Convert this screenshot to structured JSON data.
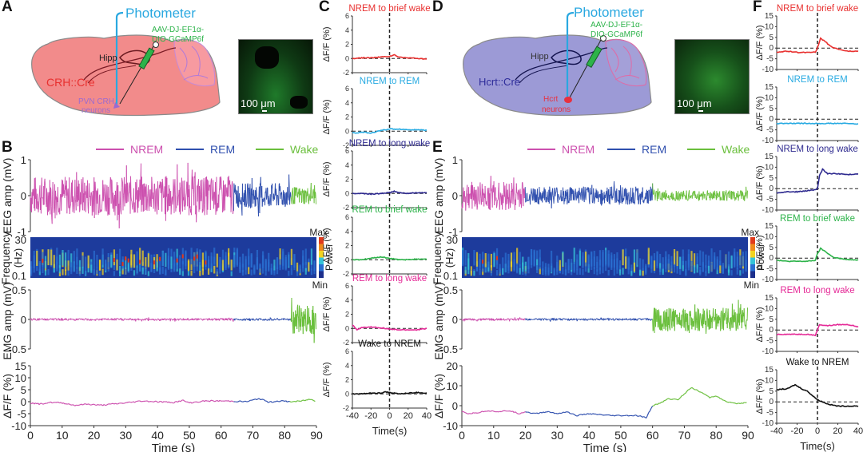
{
  "panels": {
    "A": {
      "letter": "A",
      "photometer_label": "Photometer",
      "virus_label_line1": "AAV-DJ-EF1α-",
      "virus_label_line2": "DIO-GCaMP6f",
      "hipp_label": "Hipp",
      "cre_label": "CRH::Cre",
      "neuron_label_line1": "PVN CRH",
      "neuron_label_line2": "neurons",
      "scale_bar_label": "100 μm",
      "brain_color": "#f28b8b",
      "cre_color": "#e8302f",
      "neuron_color": "#9b6ad0"
    },
    "B": {
      "letter": "B"
    },
    "C": {
      "letter": "C"
    },
    "D": {
      "letter": "D",
      "photometer_label": "Photometer",
      "virus_label_line1": "AAV-DJ-EF1α-",
      "virus_label_line2": "DIO-GCaMP6f",
      "hipp_label": "Hipp",
      "cre_label": "Hcrt::Cre",
      "neuron_label_line1": "Hcrt",
      "neuron_label_line2": "neurons",
      "scale_bar_label": "100 μm",
      "brain_color": "#9c9ad6",
      "cre_color": "#2d2b9a",
      "neuron_color": "#e8303f"
    },
    "E": {
      "letter": "E"
    },
    "F": {
      "letter": "F"
    }
  },
  "colors": {
    "NREM": "#cc4fae",
    "REM": "#2f4fae",
    "Wake": "#6abf3c",
    "photometer": "#2aa8e0",
    "virus": "#2db34a"
  },
  "chart_data": [
    {
      "id": "B",
      "type": "line",
      "legend": [
        "NREM",
        "REM",
        "Wake"
      ],
      "legend_placement": "top",
      "xlabel": "Time (s)",
      "xlim": [
        0,
        90
      ],
      "xticks": [
        0,
        10,
        20,
        30,
        40,
        50,
        60,
        70,
        80,
        90
      ],
      "state_segments": [
        {
          "state": "NREM",
          "start": 0,
          "end": 64
        },
        {
          "state": "REM",
          "start": 64,
          "end": 82
        },
        {
          "state": "Wake",
          "start": 82,
          "end": 90
        }
      ],
      "subplots": [
        {
          "name": "eeg",
          "ylabel": "EEG amp (mV)",
          "ylim": [
            -1,
            1
          ],
          "yticks": [
            -1,
            0,
            1
          ],
          "amplitude_by_state": {
            "NREM": 0.55,
            "REM": 0.35,
            "Wake": 0.25
          }
        },
        {
          "name": "spectrogram",
          "type": "heatmap",
          "ylabel_line1": "Frequency",
          "ylabel_line2": "(Hz)",
          "yticks": [
            0.1,
            30
          ],
          "colorbar_label": "Power",
          "colorbar_max": "Max",
          "colorbar_min": "Min"
        },
        {
          "name": "emg",
          "ylabel": "EMG amp (mV)",
          "ylim": [
            -0.5,
            0.5
          ],
          "yticks": [
            -0.5,
            0,
            0.5
          ],
          "amplitude_by_state": {
            "NREM": 0.02,
            "REM": 0.02,
            "Wake": 0.25
          }
        },
        {
          "name": "dff",
          "ylabel": "ΔF/F (%)",
          "ylim": [
            -10,
            15
          ],
          "yticks": [
            -10,
            -5,
            0,
            5,
            10,
            15
          ],
          "x": [
            0,
            3,
            6,
            10,
            14,
            18,
            22,
            26,
            30,
            35,
            40,
            45,
            48,
            50,
            55,
            60,
            64,
            68,
            72,
            75,
            78,
            82,
            85,
            88,
            90
          ],
          "y": [
            -0.5,
            -1,
            -0.3,
            -0.5,
            -1.5,
            -1,
            -1.5,
            -1,
            -0.5,
            0.3,
            0,
            -0.3,
            0.5,
            -0.5,
            0.3,
            0.3,
            0.2,
            0,
            1.3,
            -0.2,
            0.3,
            0,
            0.2,
            1,
            0.2
          ]
        }
      ]
    },
    {
      "id": "C",
      "type": "line",
      "xlabel": "Time(s)",
      "xlim": [
        -40,
        40
      ],
      "xticks": [
        -40,
        -20,
        0,
        20,
        40
      ],
      "ylim": [
        -2,
        6
      ],
      "yticks": [
        -2,
        0,
        2,
        4,
        6
      ],
      "ylabel": "ΔF/F (%)",
      "series": [
        {
          "name": "NREM to brief wake",
          "color": "#e8302f",
          "x": [
            -40,
            -30,
            -20,
            -10,
            0,
            5,
            10,
            20,
            30,
            40
          ],
          "y": [
            0,
            0.1,
            0.1,
            0.2,
            0.3,
            0.5,
            0.2,
            0.1,
            0,
            -0.1
          ]
        },
        {
          "name": "NREM to REM",
          "color": "#29abe2",
          "x": [
            -40,
            -35,
            -30,
            -20,
            -10,
            0,
            10,
            20,
            30,
            40
          ],
          "y": [
            -0.2,
            -0.3,
            -0.1,
            -0.3,
            0.1,
            0.3,
            0.3,
            0.2,
            0.2,
            0.1
          ]
        },
        {
          "name": "NREM to long wake",
          "color": "#2e2a8f",
          "x": [
            -40,
            -30,
            -20,
            -10,
            0,
            5,
            10,
            20,
            30,
            40
          ],
          "y": [
            0,
            0,
            -0.1,
            0,
            0.1,
            0.3,
            0.1,
            0,
            0.1,
            0.1
          ]
        },
        {
          "name": "REM to brief wake",
          "color": "#2db34a",
          "x": [
            -40,
            -30,
            -20,
            -10,
            0,
            10,
            20,
            30,
            40
          ],
          "y": [
            0,
            0,
            0.2,
            0.4,
            0.2,
            0,
            0,
            0.1,
            0.1
          ]
        },
        {
          "name": "REM to long wake",
          "color": "#e52a97",
          "x": [
            -40,
            -35,
            -30,
            -20,
            -10,
            0,
            10,
            20,
            30,
            40
          ],
          "y": [
            0.5,
            -0.2,
            0.1,
            0.2,
            0.1,
            -0.1,
            -0.2,
            -0.2,
            -0.2,
            0
          ]
        },
        {
          "name": "Wake to NREM",
          "color": "#111111",
          "x": [
            -40,
            -30,
            -20,
            -10,
            -5,
            0,
            10,
            20,
            30,
            40
          ],
          "y": [
            0,
            0,
            0.1,
            0.1,
            0.3,
            0.2,
            0,
            0.1,
            0.2,
            0.1
          ]
        }
      ]
    },
    {
      "id": "E",
      "type": "line",
      "legend": [
        "NREM",
        "REM",
        "Wake"
      ],
      "legend_placement": "top",
      "xlabel": "Time (s)",
      "xlim": [
        0,
        90
      ],
      "xticks": [
        0,
        10,
        20,
        30,
        40,
        50,
        60,
        70,
        80,
        90
      ],
      "state_segments": [
        {
          "state": "NREM",
          "start": 0,
          "end": 20
        },
        {
          "state": "REM",
          "start": 20,
          "end": 60
        },
        {
          "state": "Wake",
          "start": 60,
          "end": 90
        }
      ],
      "subplots": [
        {
          "name": "eeg",
          "ylabel": "EEG amp (mV)",
          "ylim": [
            -1,
            1
          ],
          "yticks": [
            -1,
            0,
            1
          ],
          "amplitude_by_state": {
            "NREM": 0.4,
            "REM": 0.25,
            "Wake": 0.15
          }
        },
        {
          "name": "spectrogram",
          "type": "heatmap",
          "ylabel_line1": "Frequency",
          "ylabel_line2": "(Hz)",
          "yticks": [
            0.1,
            30
          ],
          "colorbar_label": "Power",
          "colorbar_max": "Max",
          "colorbar_min": "Min"
        },
        {
          "name": "emg",
          "ylabel": "EMG amp (mV)",
          "ylim": [
            -0.5,
            0.5
          ],
          "yticks": [
            -0.5,
            0,
            0.5
          ],
          "amplitude_by_state": {
            "NREM": 0.02,
            "REM": 0.02,
            "Wake": 0.2
          }
        },
        {
          "name": "dff",
          "ylabel": "ΔF/F (%)",
          "ylim": [
            -10,
            20
          ],
          "yticks": [
            -10,
            0,
            10,
            20
          ],
          "x": [
            0,
            2,
            5,
            8,
            12,
            15,
            18,
            20,
            23,
            27,
            30,
            33,
            36,
            40,
            43,
            47,
            50,
            55,
            58,
            60,
            62,
            65,
            68,
            70,
            72,
            75,
            78,
            80,
            83,
            86,
            90
          ],
          "y": [
            -3,
            -4,
            -3.5,
            -2.5,
            -3,
            -2.5,
            -4,
            -3,
            -4,
            -3,
            -4,
            -3,
            -5,
            -4,
            -4.5,
            -5,
            -5,
            -5,
            -6,
            0,
            1,
            3.5,
            3,
            6,
            9,
            7,
            4,
            5,
            2,
            1,
            1.5
          ]
        }
      ]
    },
    {
      "id": "F",
      "type": "line",
      "xlabel": "Time(s)",
      "xlim": [
        -40,
        40
      ],
      "xticks": [
        -40,
        -20,
        0,
        20,
        40
      ],
      "ylim": [
        -10,
        15
      ],
      "yticks": [
        -10,
        -5,
        0,
        5,
        10,
        15
      ],
      "ylabel": "ΔF/F (%)",
      "series": [
        {
          "name": "NREM to brief wake",
          "color": "#e8302f",
          "x": [
            -40,
            -30,
            -20,
            -10,
            -2,
            0,
            3,
            8,
            12,
            20,
            30,
            40
          ],
          "y": [
            -2,
            -1.5,
            -2,
            -2,
            -1.8,
            0,
            4.5,
            3,
            1,
            -0.5,
            -1.5,
            -1.5
          ]
        },
        {
          "name": "NREM to REM",
          "color": "#29abe2",
          "x": [
            -40,
            -30,
            -20,
            -10,
            0,
            10,
            20,
            30,
            40
          ],
          "y": [
            -2,
            -2,
            -2,
            -2,
            -2,
            -2,
            -2,
            -2,
            -2.3
          ]
        },
        {
          "name": "NREM to long wake",
          "color": "#2e2a8f",
          "x": [
            -40,
            -30,
            -20,
            -10,
            -2,
            0,
            2,
            5,
            10,
            20,
            30,
            40
          ],
          "y": [
            -2,
            -1.5,
            -1.5,
            -1,
            -0.5,
            0,
            6,
            9,
            7,
            7,
            6.5,
            7
          ]
        },
        {
          "name": "REM to brief wake",
          "color": "#2db34a",
          "x": [
            -40,
            -30,
            -20,
            -10,
            -2,
            0,
            3,
            8,
            15,
            25,
            40
          ],
          "y": [
            -1,
            -1.5,
            -1.5,
            -1.5,
            -1,
            2,
            4.5,
            3,
            0.5,
            -0.5,
            -1
          ]
        },
        {
          "name": "REM to long wake",
          "color": "#e52a97",
          "x": [
            -40,
            -30,
            -20,
            -10,
            -2,
            0,
            2,
            10,
            20,
            30,
            40
          ],
          "y": [
            -2,
            -2,
            -2,
            -2,
            -2.5,
            0,
            2.5,
            2,
            2.5,
            2.5,
            1.5
          ]
        },
        {
          "name": "Wake to NREM",
          "color": "#111111",
          "x": [
            -40,
            -35,
            -30,
            -22,
            -15,
            -10,
            -5,
            0,
            5,
            10,
            20,
            30,
            40
          ],
          "y": [
            5.5,
            6,
            6,
            8,
            6,
            5,
            3,
            1,
            0,
            -1,
            -2,
            -2,
            -2
          ]
        }
      ]
    }
  ]
}
